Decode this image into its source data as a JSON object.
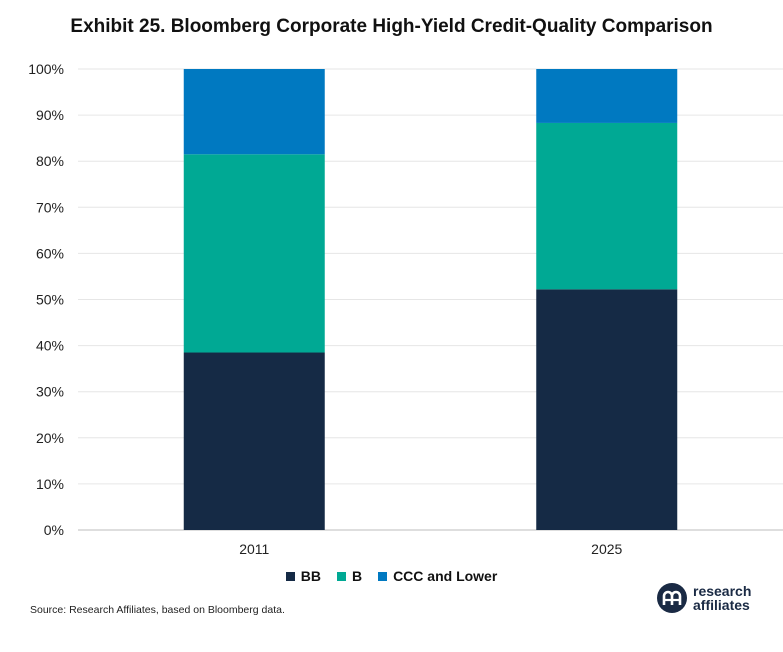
{
  "chart_data": {
    "type": "bar",
    "stacked": true,
    "title": "Exhibit 25. Bloomberg Corporate High-Yield Credit-Quality Comparison",
    "categories": [
      "2011",
      "2025"
    ],
    "series": [
      {
        "name": "BB",
        "color": "#152a45",
        "values": [
          38.5,
          52.2
        ]
      },
      {
        "name": "B",
        "color": "#00a994",
        "values": [
          43.0,
          36.1
        ]
      },
      {
        "name": "CCC and Lower",
        "color": "#0079c1",
        "values": [
          18.5,
          11.7
        ]
      }
    ],
    "ylim": [
      0,
      100
    ],
    "yticks": [
      "0%",
      "10%",
      "20%",
      "30%",
      "40%",
      "50%",
      "60%",
      "70%",
      "80%",
      "90%",
      "100%"
    ],
    "grid": true,
    "legend_position": "bottom",
    "xlabel": "",
    "ylabel": ""
  },
  "source": "Source: Research Affiliates, based on Bloomberg data.",
  "brand": {
    "line1": "research",
    "line2": "affiliates",
    "mark_icon": "research-affiliates-logo-icon"
  }
}
